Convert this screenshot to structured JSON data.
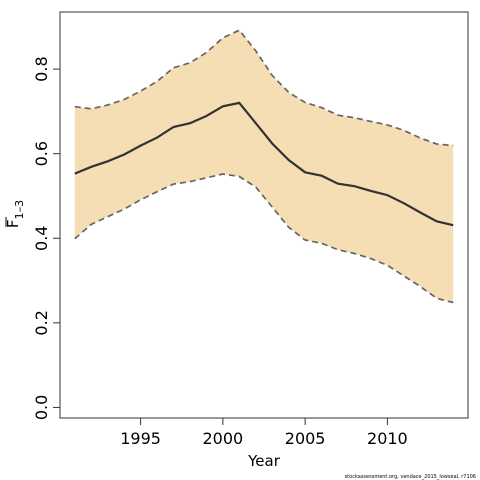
{
  "chart_data": {
    "type": "line",
    "xlabel": "Year",
    "ylabel": "F̅ 1–3",
    "ylabel_main": "F",
    "ylabel_sub": "1–3",
    "xlim": [
      1990.1,
      2014.9
    ],
    "ylim": [
      -0.025,
      0.935
    ],
    "x_ticks": [
      1995,
      2000,
      2005,
      2010
    ],
    "y_ticks": [
      0.0,
      0.2,
      0.4,
      0.6,
      0.8
    ],
    "y_tick_labels": [
      "0.0",
      "0.2",
      "0.4",
      "0.6",
      "0.8"
    ],
    "grid": false,
    "x": [
      1991,
      1992,
      1993,
      1994,
      1995,
      1996,
      1997,
      1998,
      1999,
      2000,
      2001,
      2002,
      2003,
      2004,
      2005,
      2006,
      2007,
      2008,
      2009,
      2010,
      2011,
      2012,
      2013,
      2014
    ],
    "series": [
      {
        "role": "estimate",
        "values": [
          0.553,
          0.569,
          0.582,
          0.598,
          0.619,
          0.638,
          0.663,
          0.672,
          0.689,
          0.712,
          0.72,
          0.672,
          0.624,
          0.585,
          0.556,
          0.548,
          0.529,
          0.523,
          0.512,
          0.502,
          0.483,
          0.461,
          0.44,
          0.431
        ],
        "color": "#333333"
      },
      {
        "role": "upper",
        "values": [
          0.711,
          0.706,
          0.715,
          0.728,
          0.748,
          0.771,
          0.803,
          0.815,
          0.839,
          0.874,
          0.892,
          0.843,
          0.785,
          0.745,
          0.721,
          0.709,
          0.691,
          0.685,
          0.676,
          0.668,
          0.655,
          0.637,
          0.623,
          0.619
        ],
        "color": "#666666"
      },
      {
        "role": "lower",
        "values": [
          0.399,
          0.433,
          0.451,
          0.469,
          0.491,
          0.51,
          0.528,
          0.534,
          0.543,
          0.552,
          0.546,
          0.521,
          0.474,
          0.426,
          0.396,
          0.388,
          0.373,
          0.364,
          0.352,
          0.336,
          0.311,
          0.286,
          0.258,
          0.248
        ],
        "color": "#666666"
      }
    ],
    "band_color": "#f5deb3"
  },
  "credit": "stockassessment.org, vendace_2015_lowseal, r7106"
}
